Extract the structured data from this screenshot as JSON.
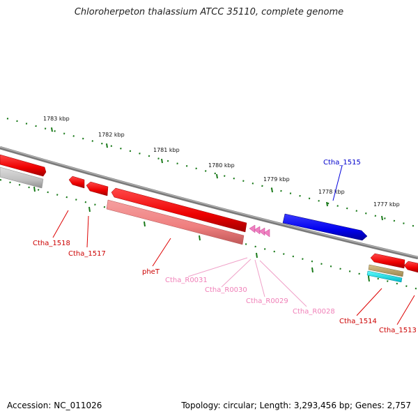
{
  "title": "Chloroherpeton thalassium ATCC 35110, complete genome",
  "footer": {
    "accession": "Accession: NC_011026",
    "summary": "Topology: circular; Length: 3,293,456 bp; Genes: 2,757"
  },
  "colors": {
    "gene_forward": "#1010ee",
    "gene_reverse": "#ee1010",
    "cds_reverse": "#f08080",
    "rna": "#f080c0",
    "pseudo": "#c0c0c0",
    "backbone": "#888888",
    "ticks": "#1a7a1a"
  },
  "scale": {
    "labels": [
      "1783 kbp",
      "1782 kbp",
      "1781 kbp",
      "1780 kbp",
      "1779 kbp",
      "1778 kbp",
      "1777 kbp"
    ]
  },
  "features": [
    {
      "label": "Ctha_1518",
      "strand": "reverse",
      "type": "gene"
    },
    {
      "label": "Ctha_1517",
      "strand": "reverse",
      "type": "gene"
    },
    {
      "label": "pheT",
      "strand": "reverse",
      "type": "gene"
    },
    {
      "label": "Ctha_R0031",
      "strand": "reverse",
      "type": "tRNA"
    },
    {
      "label": "Ctha_R0030",
      "strand": "reverse",
      "type": "tRNA"
    },
    {
      "label": "Ctha_R0029",
      "strand": "reverse",
      "type": "tRNA"
    },
    {
      "label": "Ctha_R0028",
      "strand": "reverse",
      "type": "tRNA"
    },
    {
      "label": "Ctha_1515",
      "strand": "forward",
      "type": "gene"
    },
    {
      "label": "Ctha_1514",
      "strand": "reverse",
      "type": "gene"
    },
    {
      "label": "Ctha_1513",
      "strand": "reverse",
      "type": "gene"
    }
  ]
}
